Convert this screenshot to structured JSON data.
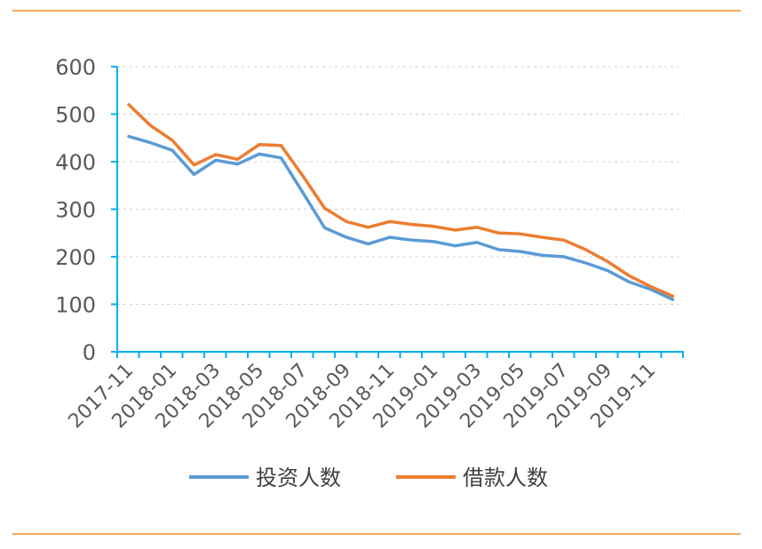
{
  "chart_data": {
    "type": "line",
    "title": "",
    "xlabel": "",
    "ylabel": "",
    "ylim": [
      0,
      600
    ],
    "yticks": [
      "0",
      "100",
      "200",
      "300",
      "400",
      "500",
      "600"
    ],
    "grid": "horizontal dashed",
    "legend_position": "bottom",
    "x": [
      "2017-11",
      "2017-12",
      "2018-01",
      "2018-02",
      "2018-03",
      "2018-04",
      "2018-05",
      "2018-06",
      "2018-07",
      "2018-08",
      "2018-09",
      "2018-10",
      "2018-11",
      "2018-12",
      "2019-01",
      "2019-02",
      "2019-03",
      "2019-04",
      "2019-05",
      "2019-06",
      "2019-07",
      "2019-08",
      "2019-09",
      "2019-10",
      "2019-11",
      "2019-12"
    ],
    "xtick_labels": [
      "2017-11",
      "2018-01",
      "2018-03",
      "2018-05",
      "2018-07",
      "2018-09",
      "2018-11",
      "2019-01",
      "2019-03",
      "2019-05",
      "2019-07",
      "2019-09",
      "2019-11"
    ],
    "series": [
      {
        "name": "投资人数",
        "color": "#5b9bd5",
        "values": [
          453,
          440,
          424,
          373,
          403,
          395,
          416,
          408,
          335,
          261,
          241,
          227,
          241,
          235,
          232,
          223,
          230,
          215,
          211,
          203,
          200,
          187,
          171,
          147,
          131,
          110
        ]
      },
      {
        "name": "借款人数",
        "color": "#ed7d31",
        "values": [
          520,
          476,
          445,
          393,
          415,
          405,
          436,
          434,
          370,
          302,
          274,
          262,
          274,
          268,
          264,
          256,
          262,
          250,
          248,
          241,
          235,
          215,
          190,
          160,
          137,
          117
        ]
      }
    ]
  }
}
